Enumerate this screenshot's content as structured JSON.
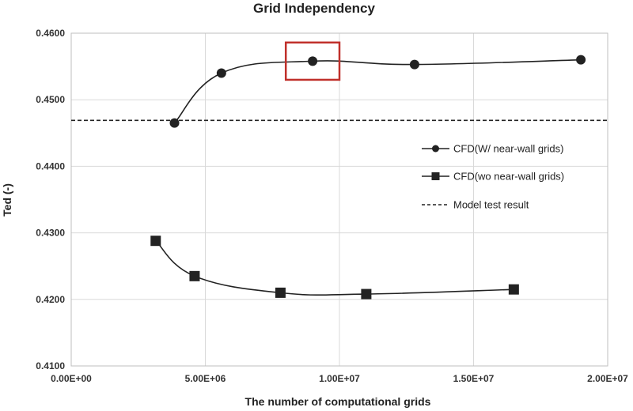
{
  "chart_data": {
    "type": "line",
    "title": "Grid Independency",
    "xlabel": "The number of computational grids",
    "ylabel": "Ted (-)",
    "xlim": [
      0,
      20000000
    ],
    "ylim": [
      0.41,
      0.46
    ],
    "x_ticks": [
      0,
      5000000,
      10000000,
      15000000,
      20000000
    ],
    "x_tick_labels": [
      "0.00E+00",
      "5.00E+06",
      "1.00E+07",
      "1.50E+07",
      "2.00E+07"
    ],
    "y_ticks": [
      0.41,
      0.42,
      0.43,
      0.44,
      0.45,
      0.46
    ],
    "y_tick_labels": [
      "0.4100",
      "0.4200",
      "0.4300",
      "0.4400",
      "0.4500",
      "0.4600"
    ],
    "grid": true,
    "legend_position": "right",
    "series": [
      {
        "name": "CFD(W/ near-wall grids)",
        "marker": "circle",
        "color": "#222222",
        "x": [
          3850000,
          5600000,
          9000000,
          12800000,
          19000000
        ],
        "y": [
          0.4465,
          0.454,
          0.4558,
          0.4553,
          0.456
        ]
      },
      {
        "name": "CFD(wo near-wall grids)",
        "marker": "square",
        "color": "#222222",
        "x": [
          3150000,
          4600000,
          7800000,
          11000000,
          16500000
        ],
        "y": [
          0.4288,
          0.4235,
          0.421,
          0.4208,
          0.4215
        ]
      },
      {
        "name": "Model test result",
        "style": "dashed",
        "color": "#222222",
        "y_constant": 0.4469
      }
    ],
    "highlight": {
      "shape": "rectangle",
      "color": "#c0302b",
      "x_range": [
        8000000,
        10000000
      ],
      "y_range": [
        0.453,
        0.4586
      ]
    }
  }
}
